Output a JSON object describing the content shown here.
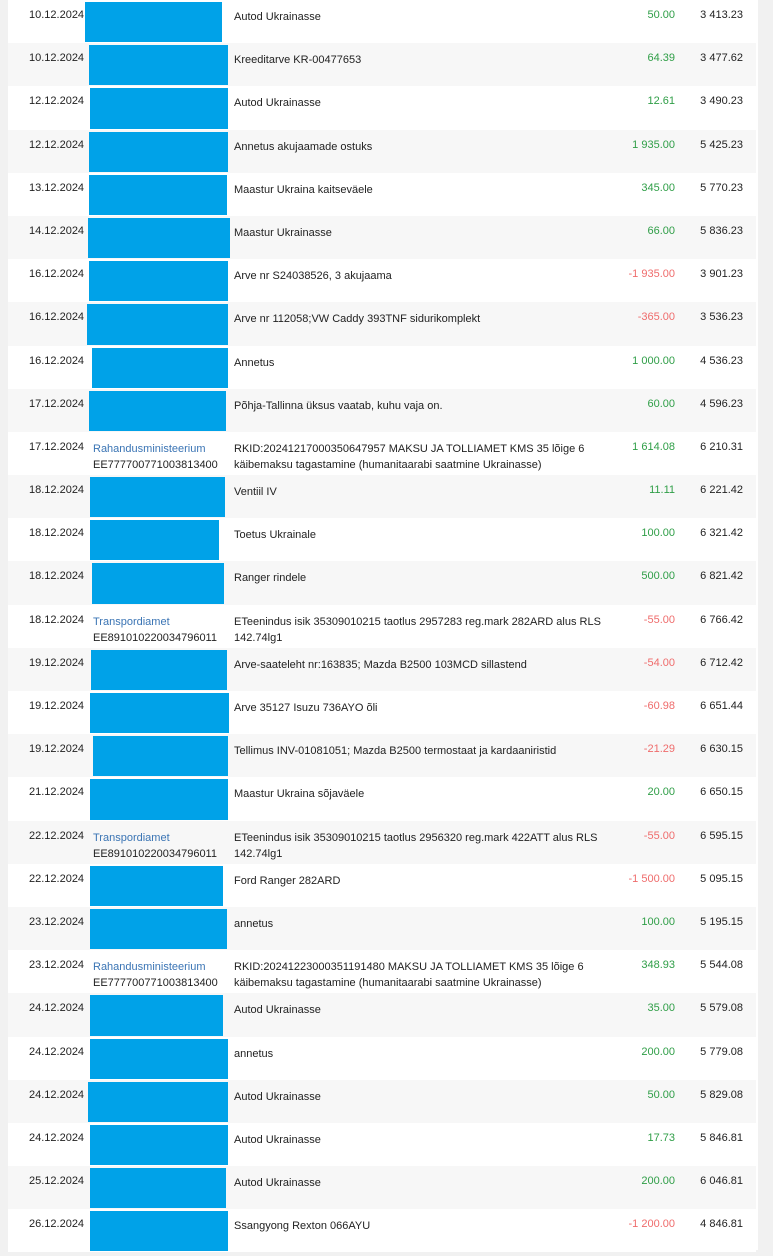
{
  "accent_colors": {
    "mask": "#00a2e8",
    "positive": "#2f9e47",
    "negative": "#ef6c6c",
    "link": "#3a74b4"
  },
  "transactions": [
    {
      "date": "10.12.2024",
      "party": null,
      "description": "Autod Ukrainasse",
      "amount": "50.00",
      "balance": "3 413.23",
      "sign": "pos"
    },
    {
      "date": "10.12.2024",
      "party": null,
      "description": "Kreeditarve KR-00477653",
      "amount": "64.39",
      "balance": "3 477.62",
      "sign": "pos"
    },
    {
      "date": "12.12.2024",
      "party": null,
      "description": "Autod Ukrainasse",
      "amount": "12.61",
      "balance": "3 490.23",
      "sign": "pos"
    },
    {
      "date": "12.12.2024",
      "party": null,
      "description": "Annetus akujaamade ostuks",
      "amount": "1 935.00",
      "balance": "5 425.23",
      "sign": "pos"
    },
    {
      "date": "13.12.2024",
      "party": null,
      "description": "Maastur Ukraina kaitseväele",
      "amount": "345.00",
      "balance": "5 770.23",
      "sign": "pos"
    },
    {
      "date": "14.12.2024",
      "party": null,
      "description": "Maastur Ukrainasse",
      "amount": "66.00",
      "balance": "5 836.23",
      "sign": "pos"
    },
    {
      "date": "16.12.2024",
      "party": null,
      "description": "Arve nr S24038526, 3 akujaama",
      "amount": "-1 935.00",
      "balance": "3 901.23",
      "sign": "neg"
    },
    {
      "date": "16.12.2024",
      "party": null,
      "description": "Arve nr 112058;VW Caddy 393TNF sidurikomplekt",
      "amount": "-365.00",
      "balance": "3 536.23",
      "sign": "neg"
    },
    {
      "date": "16.12.2024",
      "party": null,
      "description": "Annetus",
      "amount": "1 000.00",
      "balance": "4 536.23",
      "sign": "pos"
    },
    {
      "date": "17.12.2024",
      "party": null,
      "description": "Põhja-Tallinna üksus vaatab, kuhu vaja on.",
      "amount": "60.00",
      "balance": "4 596.23",
      "sign": "pos"
    },
    {
      "date": "17.12.2024",
      "party": {
        "name": "Rahandusministeerium",
        "account": "EE777700771003813400"
      },
      "description": "RKID:20241217000350647957 MAKSU JA TOLLIAMET KMS 35 lõige 6 käibemaksu tagastamine (humanitaarabi saatmine Ukrainasse)",
      "amount": "1 614.08",
      "balance": "6 210.31",
      "sign": "pos"
    },
    {
      "date": "18.12.2024",
      "party": null,
      "description": "Ventiil IV",
      "amount": "11.11",
      "balance": "6 221.42",
      "sign": "pos"
    },
    {
      "date": "18.12.2024",
      "party": null,
      "description": "Toetus Ukrainale",
      "amount": "100.00",
      "balance": "6 321.42",
      "sign": "pos"
    },
    {
      "date": "18.12.2024",
      "party": null,
      "description": "Ranger rindele",
      "amount": "500.00",
      "balance": "6 821.42",
      "sign": "pos"
    },
    {
      "date": "18.12.2024",
      "party": {
        "name": "Transpordiamet",
        "account": "EE891010220034796011"
      },
      "description": "ETeenindus isik 35309010215 taotlus 2957283 reg.mark 282ARD alus RLS 142.74lg1",
      "amount": "-55.00",
      "balance": "6 766.42",
      "sign": "neg"
    },
    {
      "date": "19.12.2024",
      "party": null,
      "description": "Arve-saateleht nr:163835; Mazda B2500 103MCD sillastend",
      "amount": "-54.00",
      "balance": "6 712.42",
      "sign": "neg"
    },
    {
      "date": "19.12.2024",
      "party": null,
      "description": "Arve 35127 Isuzu 736AYO õli",
      "amount": "-60.98",
      "balance": "6 651.44",
      "sign": "neg"
    },
    {
      "date": "19.12.2024",
      "party": null,
      "description": "Tellimus INV-01081051; Mazda B2500 termostaat ja kardaaniristid",
      "amount": "-21.29",
      "balance": "6 630.15",
      "sign": "neg"
    },
    {
      "date": "21.12.2024",
      "party": null,
      "description": "Maastur Ukraina sõjaväele",
      "amount": "20.00",
      "balance": "6 650.15",
      "sign": "pos"
    },
    {
      "date": "22.12.2024",
      "party": {
        "name": "Transpordiamet",
        "account": "EE891010220034796011"
      },
      "description": "ETeenindus isik 35309010215 taotlus 2956320 reg.mark 422ATT alus RLS 142.74lg1",
      "amount": "-55.00",
      "balance": "6 595.15",
      "sign": "neg"
    },
    {
      "date": "22.12.2024",
      "party": null,
      "description": "Ford Ranger 282ARD",
      "amount": "-1 500.00",
      "balance": "5 095.15",
      "sign": "neg"
    },
    {
      "date": "23.12.2024",
      "party": null,
      "description": "annetus",
      "amount": "100.00",
      "balance": "5 195.15",
      "sign": "pos"
    },
    {
      "date": "23.12.2024",
      "party": {
        "name": "Rahandusministeerium",
        "account": "EE777700771003813400"
      },
      "description": "RKID:20241223000351191480 MAKSU JA TOLLIAMET KMS 35 lõige 6 käibemaksu tagastamine (humanitaarabi saatmine Ukrainasse)",
      "amount": "348.93",
      "balance": "5 544.08",
      "sign": "pos"
    },
    {
      "date": "24.12.2024",
      "party": null,
      "description": "Autod Ukrainasse",
      "amount": "35.00",
      "balance": "5 579.08",
      "sign": "pos"
    },
    {
      "date": "24.12.2024",
      "party": null,
      "description": "annetus",
      "amount": "200.00",
      "balance": "5 779.08",
      "sign": "pos"
    },
    {
      "date": "24.12.2024",
      "party": null,
      "description": "Autod Ukrainasse",
      "amount": "50.00",
      "balance": "5 829.08",
      "sign": "pos"
    },
    {
      "date": "24.12.2024",
      "party": null,
      "description": "Autod Ukrainasse",
      "amount": "17.73",
      "balance": "5 846.81",
      "sign": "pos"
    },
    {
      "date": "25.12.2024",
      "party": null,
      "description": "Autod Ukrainasse",
      "amount": "200.00",
      "balance": "6 046.81",
      "sign": "pos"
    },
    {
      "date": "26.12.2024",
      "party": null,
      "description": "Ssangyong Rexton 066AYU",
      "amount": "-1 200.00",
      "balance": "4 846.81",
      "sign": "neg"
    }
  ]
}
